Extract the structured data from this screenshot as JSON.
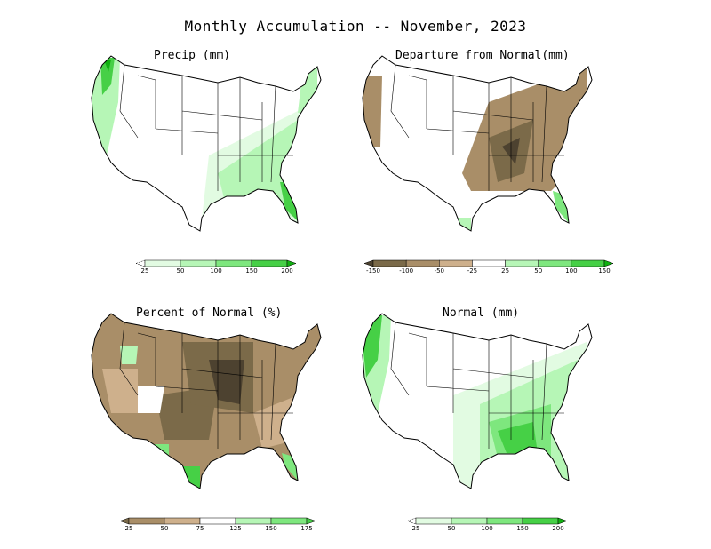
{
  "title": "Monthly Accumulation -- November, 2023",
  "colors": {
    "green_light": "#e2fbe2",
    "green_1": "#b6f6b6",
    "green_2": "#7ee77e",
    "green_3": "#46d046",
    "green_4": "#10b010",
    "brown_light": "#ceb08c",
    "brown_1": "#a98e68",
    "brown_2": "#7b6a49",
    "brown_3": "#4d4230",
    "outline": "#000000"
  },
  "panels": [
    {
      "id": "precip",
      "title": "Precip (mm)",
      "colorbar": {
        "labels": [
          "25",
          "50",
          "100",
          "150",
          "200"
        ],
        "colors": [
          "#ffffff",
          "#e2fbe2",
          "#b6f6b6",
          "#7ee77e",
          "#46d046",
          "#10b010"
        ],
        "low_open": true
      }
    },
    {
      "id": "departure",
      "title": "Departure from Normal(mm)",
      "colorbar": {
        "labels": [
          "-150",
          "-100",
          "-50",
          "-25",
          "25",
          "50",
          "100",
          "150"
        ],
        "colors": [
          "#4d4230",
          "#7b6a49",
          "#a98e68",
          "#ceb08c",
          "#ffffff",
          "#b6f6b6",
          "#7ee77e",
          "#46d046",
          "#10b010"
        ]
      }
    },
    {
      "id": "percent",
      "title": "Percent of Normal (%)",
      "colorbar": {
        "labels": [
          "25",
          "50",
          "75",
          "125",
          "150",
          "175"
        ],
        "colors": [
          "#7b6a49",
          "#a98e68",
          "#ceb08c",
          "#ffffff",
          "#b6f6b6",
          "#7ee77e",
          "#46d046"
        ]
      }
    },
    {
      "id": "normal",
      "title": "Normal (mm)",
      "colorbar": {
        "labels": [
          "25",
          "50",
          "100",
          "150",
          "200"
        ],
        "colors": [
          "#ffffff",
          "#e2fbe2",
          "#b6f6b6",
          "#7ee77e",
          "#46d046",
          "#10b010"
        ],
        "low_open": true
      }
    }
  ]
}
